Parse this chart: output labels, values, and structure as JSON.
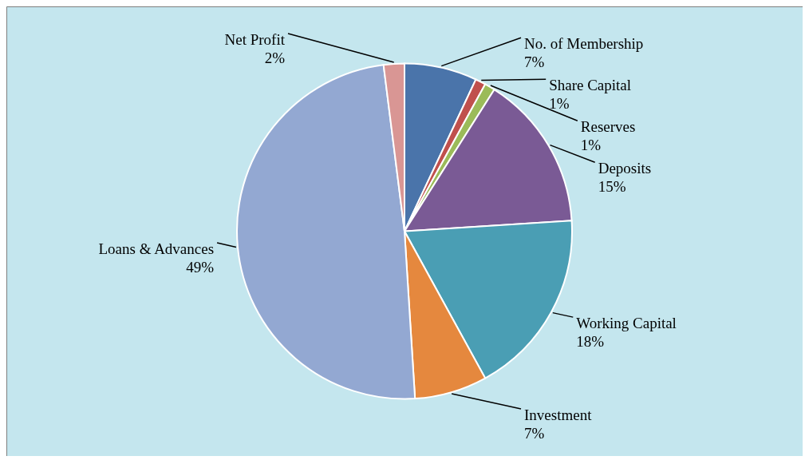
{
  "chart_data": {
    "type": "pie",
    "categories": [
      "No. of Membership",
      "Share Capital",
      "Reserves",
      "Deposits",
      "Working Capital",
      "Investment",
      "Loans & Advances",
      "Net Profit"
    ],
    "values": [
      7,
      1,
      1,
      15,
      18,
      7,
      49,
      2
    ],
    "value_labels": [
      "7%",
      "1%",
      "1%",
      "15%",
      "18%",
      "7%",
      "49%",
      "2%"
    ],
    "colors": [
      "#4a74aa",
      "#c0504d",
      "#9bbb59",
      "#7a5a95",
      "#4a9eb4",
      "#e5883e",
      "#93a8d2",
      "#d99694"
    ]
  }
}
